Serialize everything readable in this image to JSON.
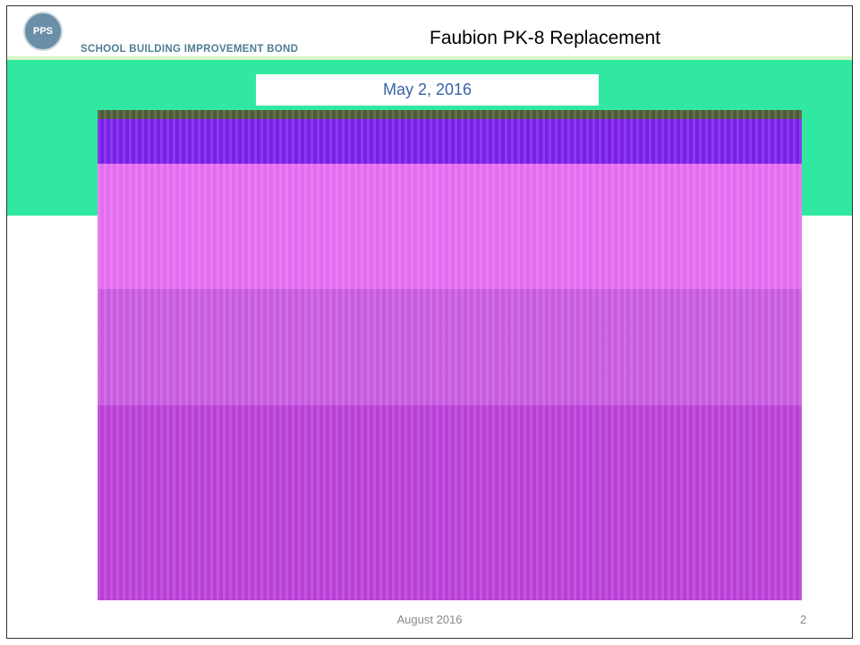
{
  "header": {
    "logo": "PPS",
    "banner": "SCHOOL BUILDING IMPROVEMENT BOND",
    "title": "Faubion PK-8 Replacement"
  },
  "date": "May 2, 2016",
  "footer": {
    "text": "August 2016",
    "page": "2"
  }
}
